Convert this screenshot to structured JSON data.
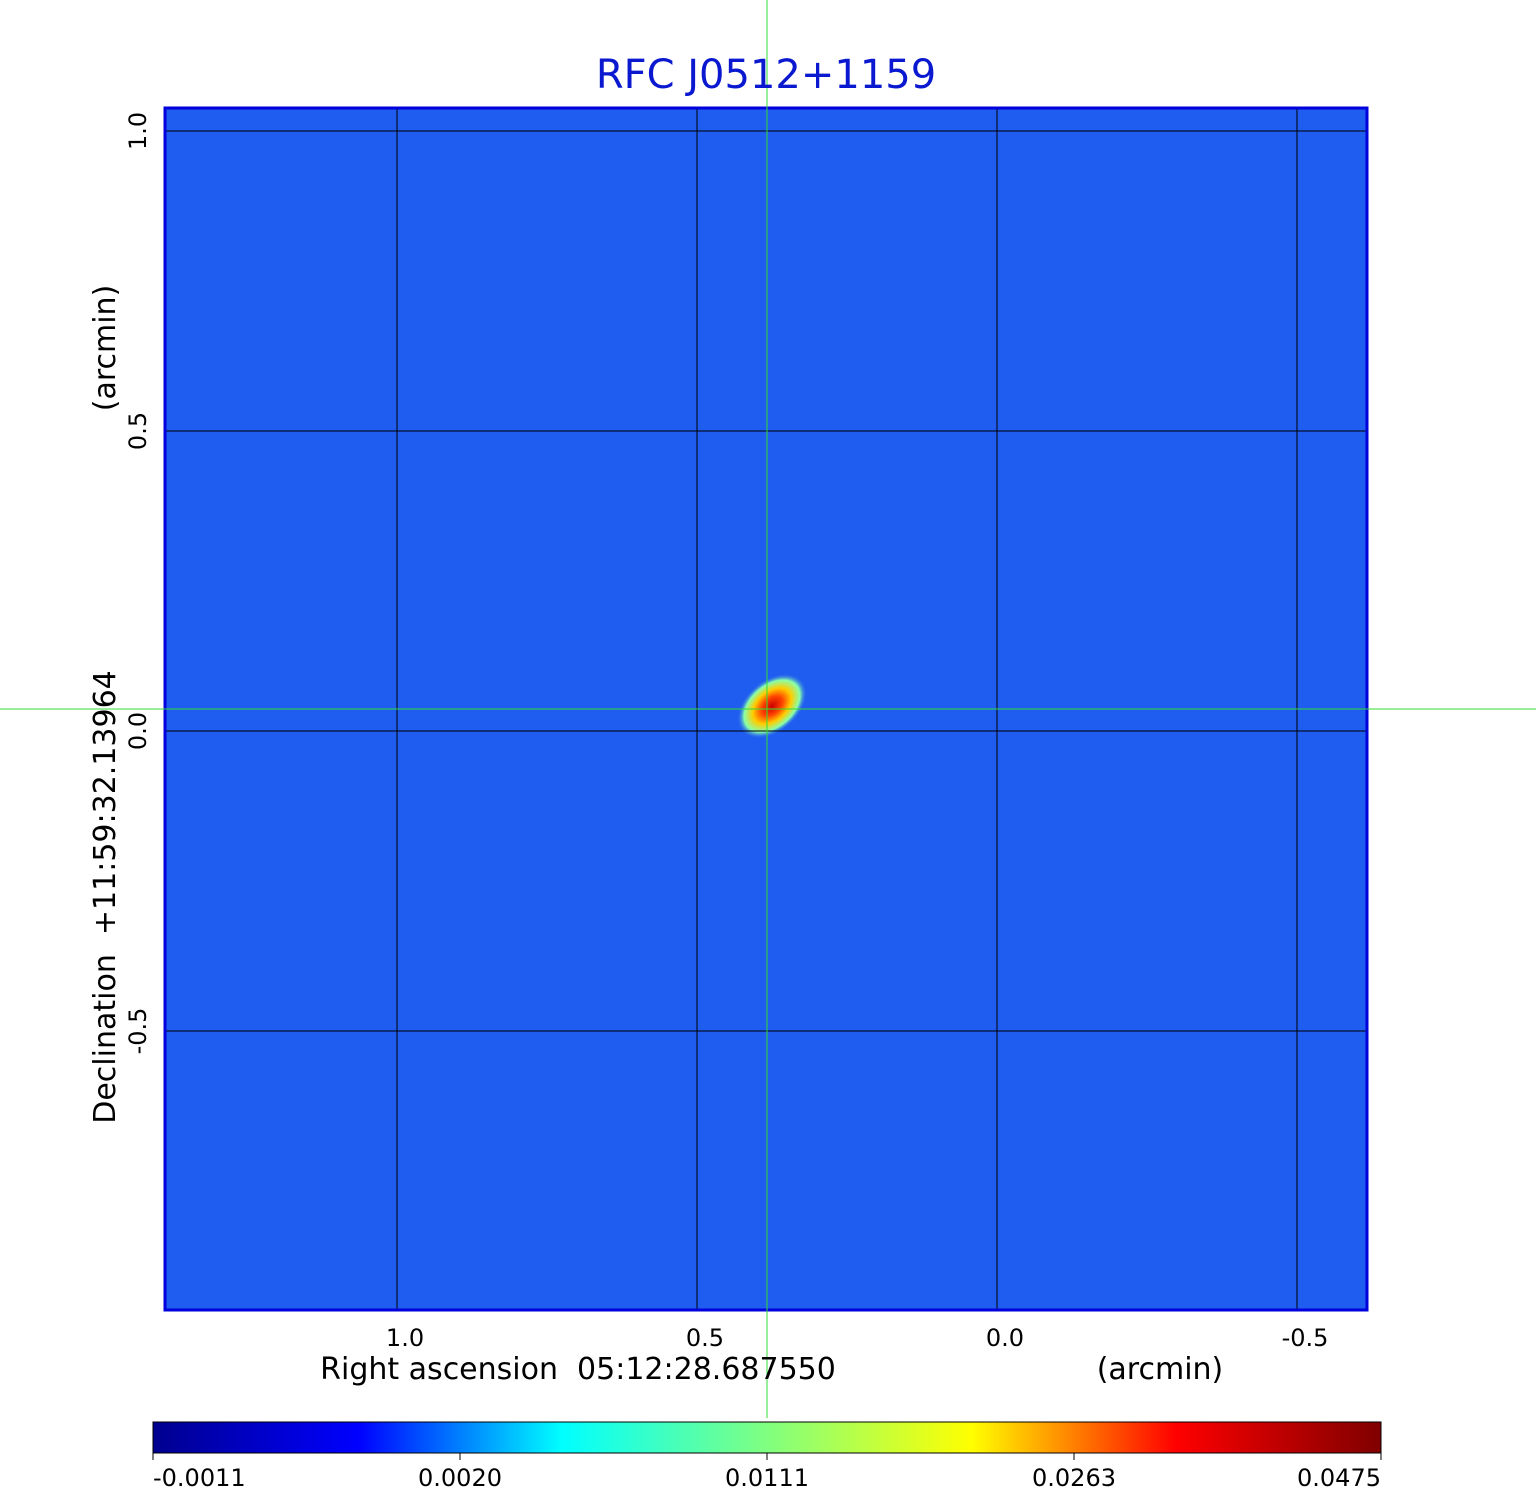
{
  "chart_data": {
    "type": "image",
    "title": "RFC J0512+1159",
    "x_label": "Right ascension  05:12:28.687550",
    "x_unit": "(arcmin)",
    "y_label": "Declination  +11:59:32.13964",
    "y_unit": "(arcmin)",
    "xlim": [
      1.3867,
      -0.6167
    ],
    "ylim": [
      -0.965,
      1.0383
    ],
    "xticks": [
      {
        "value": 1,
        "label": "1.0"
      },
      0.5,
      {
        "value": 0,
        "label": "0.0"
      },
      -0.5
    ],
    "yticks": [
      {
        "value": 1,
        "label": "1.0"
      },
      0.5,
      {
        "value": 0,
        "label": "0.0"
      },
      -0.5
    ],
    "grid": true,
    "colormap": "jet",
    "colorbar_ticks": [
      -0.0011,
      {
        "value": 0.002,
        "label": "0.0020"
      },
      0.0111,
      0.0263,
      0.0475
    ]
  }
}
